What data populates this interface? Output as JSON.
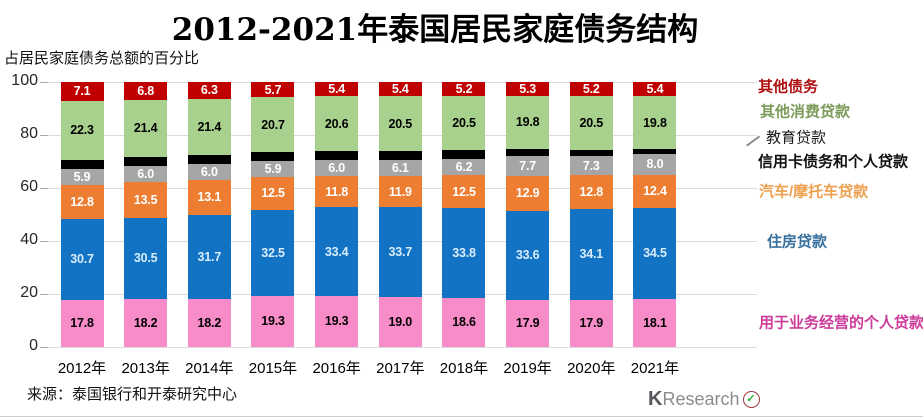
{
  "page": {
    "title": "2012-2021年泰国居民家庭债务结构",
    "subtitle": "占居民家庭债务总额的百分比",
    "source": "来源：泰国银行和开泰研究中心",
    "logo": {
      "k": "K",
      "research": "Research",
      "check_glyph": "✓"
    }
  },
  "chart_data": {
    "type": "bar",
    "stacked": true,
    "title": "2012-2021年泰国居民家庭债务结构",
    "ylabel": "占居民家庭债务总额的百分比",
    "categories": [
      "2012年",
      "2013年",
      "2014年",
      "2015年",
      "2016年",
      "2017年",
      "2018年",
      "2019年",
      "2020年",
      "2021年"
    ],
    "ylim": [
      0,
      100
    ],
    "yticks": [
      0,
      20,
      40,
      60,
      80,
      100
    ],
    "grid": "horizontal",
    "legend_position": "right",
    "series": [
      {
        "key": "personal-business-loans",
        "name": "用于业务经营的个人贷款",
        "color": "#F78CC8",
        "label_color": "#000000",
        "values": [
          17.8,
          18.2,
          18.2,
          19.3,
          19.3,
          19.0,
          18.6,
          17.9,
          17.9,
          18.1
        ]
      },
      {
        "key": "housing-loans",
        "name": "住房贷款",
        "color": "#1272C4",
        "label_color": "#D8EDFB",
        "values": [
          30.7,
          30.5,
          31.7,
          32.5,
          33.4,
          33.7,
          33.8,
          33.6,
          34.1,
          34.5
        ]
      },
      {
        "key": "auto-motorcycle-loans",
        "name": "汽车/摩托车贷款",
        "color": "#ED7D31",
        "label_color": "#FFFFFF",
        "values": [
          12.8,
          13.5,
          13.1,
          12.5,
          11.8,
          11.9,
          12.5,
          12.9,
          12.8,
          12.4
        ]
      },
      {
        "key": "credit-card-and-personal-loans",
        "name": "信用卡债务和个人贷款",
        "color": "#A6A6A6",
        "label_color": "#FFFFFF",
        "values": [
          5.9,
          6.0,
          6.0,
          5.9,
          6.0,
          6.1,
          6.2,
          7.7,
          7.3,
          8.0
        ]
      },
      {
        "key": "education-loans",
        "name": "教育贷款",
        "color": "#000000",
        "label_color": "#FFFFFF",
        "show_labels": false,
        "values": [
          3.4,
          3.6,
          3.3,
          3.4,
          3.5,
          3.4,
          3.2,
          2.8,
          2.2,
          1.8
        ]
      },
      {
        "key": "other-consumer-loans",
        "name": "其他消费贷款",
        "color": "#A9D18E",
        "label_color": "#000000",
        "values": [
          22.3,
          21.4,
          21.4,
          20.7,
          20.6,
          20.5,
          20.5,
          19.8,
          20.5,
          19.8
        ]
      },
      {
        "key": "other-debt",
        "name": "其他债务",
        "color": "#C00000",
        "label_color": "#FFFFFF",
        "values": [
          7.1,
          6.8,
          6.3,
          5.7,
          5.4,
          5.4,
          5.2,
          5.3,
          5.2,
          5.4
        ]
      }
    ]
  },
  "legend": {
    "items": [
      {
        "key": "other-debt",
        "label": "其他债务",
        "color": "#AE0E0F",
        "bold": true
      },
      {
        "key": "other-consumer-loans",
        "label": "其他消费贷款",
        "color": "#7D9C5C",
        "bold": true
      },
      {
        "key": "education-loans",
        "label": "教育贷款",
        "color": "#1A1A1A",
        "bold": false
      },
      {
        "key": "credit-card-and-personal-loans",
        "label": "信用卡债务和个人贷款",
        "color": "#111111",
        "bold": true
      },
      {
        "key": "auto-motorcycle-loans",
        "label": "汽车/摩托车贷款",
        "color": "#EDA04F",
        "bold": true
      },
      {
        "key": "housing-loans",
        "label": "住房贷款",
        "color": "#39719E",
        "bold": true
      },
      {
        "key": "personal-business-loans",
        "label": "用于业务经营的个人贷款",
        "color": "#CC3C9B",
        "bold": true
      }
    ]
  }
}
